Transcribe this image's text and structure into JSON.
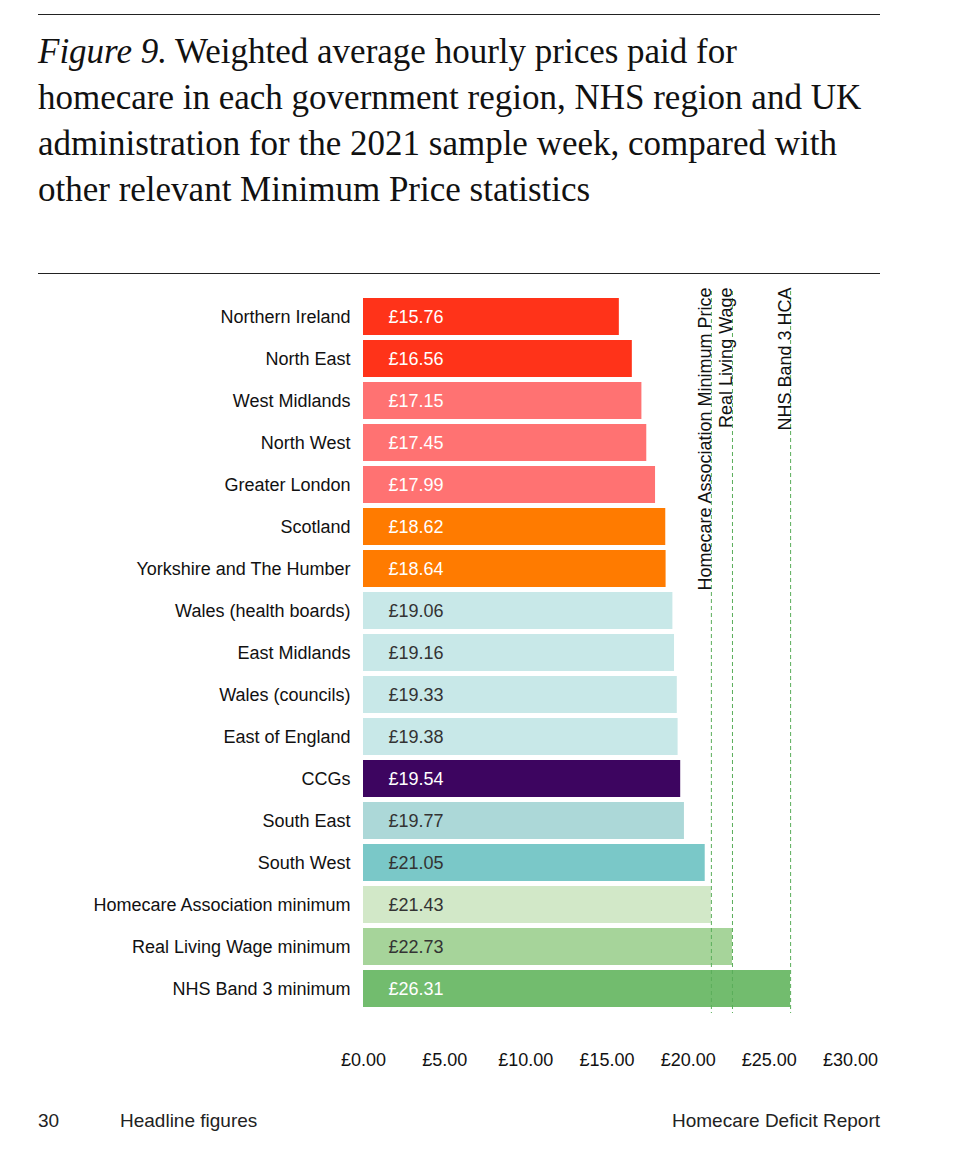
{
  "chart_data": {
    "type": "bar",
    "title": "Figure 9. Weighted average hourly prices paid for homecare in each government region, NHS region and UK administration for the 2021 sample week, compared with other relevant Minimum Price statistics",
    "orientation": "horizontal",
    "categories": [
      "Northern Ireland",
      "North East",
      "West Midlands",
      "North West",
      "Greater London",
      "Scotland",
      "Yorkshire and The Humber",
      "Wales (health boards)",
      "East Midlands",
      "Wales (councils)",
      "East of England",
      "CCGs",
      "South East",
      "South West",
      "Homecare Association minimum",
      "Real Living Wage minimum",
      "NHS Band 3 minimum"
    ],
    "values": [
      15.76,
      16.56,
      17.15,
      17.45,
      17.99,
      18.62,
      18.64,
      19.06,
      19.16,
      19.33,
      19.38,
      19.54,
      19.77,
      21.05,
      21.43,
      22.73,
      26.31
    ],
    "value_labels": [
      "£15.76",
      "£16.56",
      "£17.15",
      "£17.45",
      "£17.99",
      "£18.62",
      "£18.64",
      "£19.06",
      "£19.16",
      "£19.33",
      "£19.38",
      "£19.54",
      "£19.77",
      "£21.05",
      "£21.43",
      "£22.73",
      "£26.31"
    ],
    "colors": [
      "#ff3319",
      "#ff3319",
      "#ff7272",
      "#ff7272",
      "#ff7272",
      "#ff7b00",
      "#ff7b00",
      "#c8e8e8",
      "#c8e8e8",
      "#c8e8e8",
      "#c8e8e8",
      "#3d0560",
      "#acd8d8",
      "#7ac8c8",
      "#d2e8c8",
      "#a6d49a",
      "#72bc6e"
    ],
    "data_labels": true,
    "xlim": [
      0,
      30
    ],
    "xticks": [
      {
        "value": 0,
        "label": "£0.00"
      },
      {
        "value": 5,
        "label": "£5.00"
      },
      {
        "value": 10,
        "label": "£10.00"
      },
      {
        "value": 15,
        "label": "£15.00"
      },
      {
        "value": 20,
        "label": "£20.00"
      },
      {
        "value": 25,
        "label": "£25.00"
      },
      {
        "value": 30,
        "label": "£30.00"
      }
    ],
    "grid": false,
    "reference_lines": [
      {
        "value": 21.43,
        "label": "Homecare Association Minimum Price"
      },
      {
        "value": 22.73,
        "label": "Real Living Wage"
      },
      {
        "value": 26.31,
        "label": "NHS Band 3 HCA"
      }
    ]
  },
  "footer": {
    "page": "30",
    "section": "Headline figures",
    "report": "Homecare Deficit Report"
  }
}
